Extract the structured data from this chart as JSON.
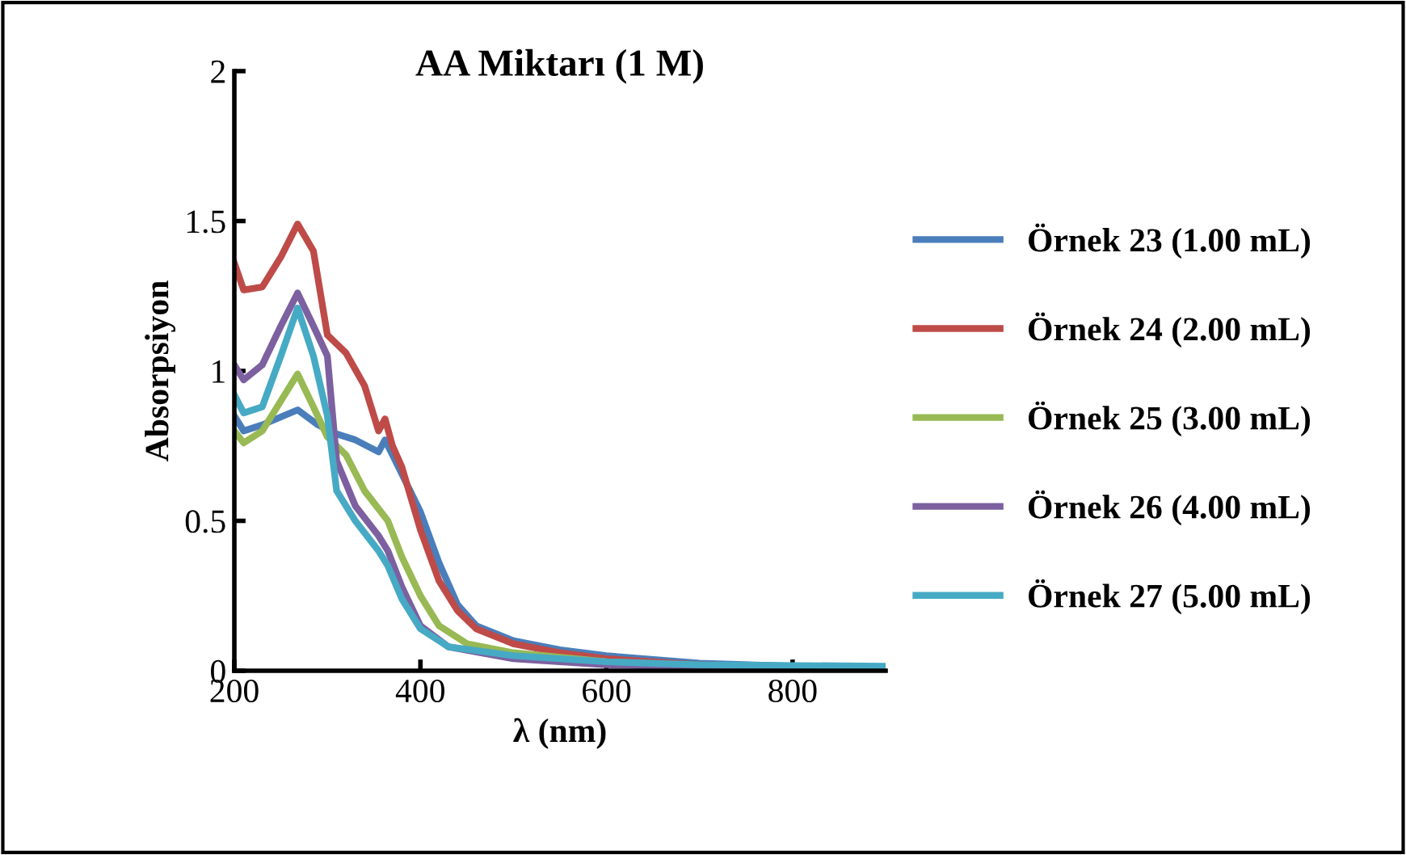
{
  "chart_data": {
    "type": "line",
    "title": "AA Miktarı (1 M)",
    "xlabel": "λ (nm)",
    "ylabel": "Absorpsiyon",
    "xlim": [
      200,
      900
    ],
    "xticks": [
      200,
      400,
      600,
      800
    ],
    "ylim": [
      0,
      2
    ],
    "yticks": [
      0,
      0.5,
      1,
      1.5,
      2
    ],
    "grid": false,
    "legend": "right",
    "series": [
      {
        "name": "Örnek 23 (1.00 mL)",
        "color": "#4a7ebb",
        "x": [
          200,
          210,
          230,
          268,
          290,
          310,
          330,
          355,
          362,
          370,
          400,
          420,
          440,
          460,
          500,
          550,
          600,
          700,
          800,
          900
        ],
        "values": [
          0.85,
          0.8,
          0.82,
          0.87,
          0.82,
          0.79,
          0.77,
          0.73,
          0.77,
          0.72,
          0.53,
          0.36,
          0.22,
          0.15,
          0.1,
          0.07,
          0.05,
          0.025,
          0.015,
          0.01
        ]
      },
      {
        "name": "Örnek 24 (2.00 mL)",
        "color": "#be4b48",
        "x": [
          200,
          210,
          230,
          250,
          268,
          285,
          300,
          320,
          340,
          355,
          362,
          370,
          380,
          400,
          420,
          440,
          460,
          500,
          550,
          600,
          700,
          800,
          900
        ],
        "values": [
          1.36,
          1.27,
          1.28,
          1.38,
          1.49,
          1.4,
          1.12,
          1.06,
          0.95,
          0.8,
          0.84,
          0.75,
          0.68,
          0.47,
          0.3,
          0.2,
          0.14,
          0.09,
          0.06,
          0.04,
          0.02,
          0.015,
          0.01
        ]
      },
      {
        "name": "Örnek 25 (3.00 mL)",
        "color": "#98b954",
        "x": [
          200,
          210,
          230,
          250,
          268,
          285,
          300,
          320,
          340,
          355,
          365,
          380,
          400,
          420,
          450,
          500,
          600,
          700,
          900
        ],
        "values": [
          0.8,
          0.76,
          0.8,
          0.9,
          0.99,
          0.88,
          0.78,
          0.72,
          0.6,
          0.54,
          0.5,
          0.38,
          0.25,
          0.15,
          0.09,
          0.06,
          0.03,
          0.015,
          0.01
        ]
      },
      {
        "name": "Örnek 26 (4.00 mL)",
        "color": "#7d60a0",
        "x": [
          200,
          210,
          230,
          250,
          268,
          285,
          300,
          310,
          330,
          355,
          365,
          380,
          400,
          430,
          500,
          600,
          700,
          900
        ],
        "values": [
          1.02,
          0.97,
          1.02,
          1.15,
          1.26,
          1.15,
          1.05,
          0.7,
          0.55,
          0.45,
          0.4,
          0.28,
          0.15,
          0.08,
          0.04,
          0.02,
          0.01,
          0.005
        ]
      },
      {
        "name": "Örnek 27 (5.00 mL)",
        "color": "#46aac5",
        "x": [
          200,
          210,
          230,
          250,
          268,
          285,
          300,
          310,
          330,
          355,
          365,
          380,
          400,
          430,
          500,
          600,
          700,
          900
        ],
        "values": [
          0.92,
          0.86,
          0.88,
          1.05,
          1.21,
          1.05,
          0.85,
          0.6,
          0.5,
          0.4,
          0.35,
          0.24,
          0.14,
          0.08,
          0.05,
          0.03,
          0.02,
          0.015
        ]
      }
    ]
  }
}
